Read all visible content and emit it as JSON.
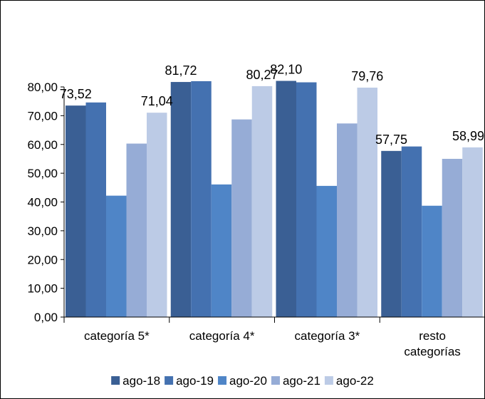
{
  "chart_data": {
    "type": "bar",
    "title": "",
    "xlabel": "",
    "ylabel": "",
    "ylim": [
      0,
      80
    ],
    "yticks": [
      "0,00",
      "10,00",
      "20,00",
      "30,00",
      "40,00",
      "50,00",
      "60,00",
      "70,00",
      "80,00"
    ],
    "categories": [
      [
        "categoría 5*"
      ],
      [
        "categoría 4*"
      ],
      [
        "categoría 3*"
      ],
      [
        "resto",
        "categorías"
      ]
    ],
    "series": [
      {
        "name": "ago-18",
        "color": "#3a5f94",
        "values": [
          73.52,
          81.72,
          82.1,
          57.75
        ]
      },
      {
        "name": "ago-19",
        "color": "#4471b0",
        "values": [
          74.6,
          82.0,
          81.6,
          59.3
        ]
      },
      {
        "name": "ago-20",
        "color": "#4f85c7",
        "values": [
          42.2,
          46.1,
          45.6,
          38.7
        ]
      },
      {
        "name": "ago-21",
        "color": "#96acd6",
        "values": [
          60.3,
          68.7,
          67.3,
          55.0
        ]
      },
      {
        "name": "ago-22",
        "color": "#bccbe6",
        "values": [
          71.04,
          80.27,
          79.76,
          58.99
        ]
      }
    ],
    "data_labels": [
      {
        "category": 0,
        "series": 0,
        "text": "73,52"
      },
      {
        "category": 0,
        "series": 4,
        "text": "71,04"
      },
      {
        "category": 1,
        "series": 0,
        "text": "81,72"
      },
      {
        "category": 1,
        "series": 4,
        "text": "80,27"
      },
      {
        "category": 2,
        "series": 0,
        "text": "82,10"
      },
      {
        "category": 2,
        "series": 4,
        "text": "79,76"
      },
      {
        "category": 3,
        "series": 0,
        "text": "57,75"
      },
      {
        "category": 3,
        "series": 4,
        "text": "58,99"
      }
    ],
    "legend": "bottom"
  }
}
